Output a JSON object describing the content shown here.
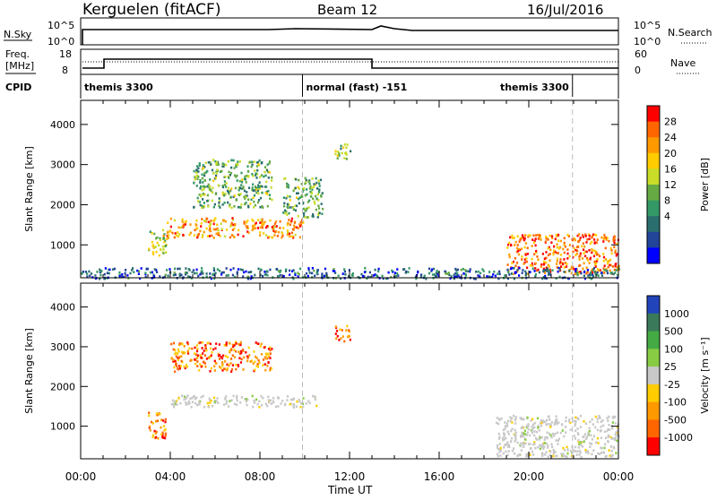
{
  "header": {
    "station_title": "Kerguelen (fitACF)",
    "beam": "Beam 12",
    "date": "16/Jul/2016"
  },
  "param_panels": {
    "nsky_label": "N.Sky",
    "nsky_ticks": [
      "10^5",
      "10^0"
    ],
    "nsearch_label": "N.Search",
    "nsearch_ticks": [
      "10^5",
      "10^0"
    ],
    "freq_label_top": "Freq.",
    "freq_label_unit": "[MHz]",
    "freq_ticks": [
      "18",
      "8"
    ],
    "nave_label": "Nave",
    "nave_ticks": [
      "60",
      "0"
    ],
    "cpid_label": "CPID"
  },
  "cpid_segments": [
    {
      "label": "themis 3300",
      "start_h": 0,
      "end_h": 9.9
    },
    {
      "label": "normal (fast) -151",
      "start_h": 9.9,
      "end_h": 21.95
    },
    {
      "label": "themis 3300",
      "start_h": 21.95,
      "end_h": 24
    }
  ],
  "time_axis": {
    "title": "Time UT",
    "ticks": [
      "00:00",
      "04:00",
      "08:00",
      "12:00",
      "16:00",
      "20:00",
      "00:00"
    ],
    "tick_hours": [
      0,
      4,
      8,
      12,
      16,
      20,
      24
    ]
  },
  "range_axis": {
    "title": "Slant Range [km]",
    "ticks": [
      "1000",
      "2000",
      "3000",
      "4000"
    ],
    "tick_values": [
      1000,
      2000,
      3000,
      4000
    ]
  },
  "chart_data": [
    {
      "type": "heatmap",
      "name": "Power",
      "ylim_km": [
        180,
        4600
      ],
      "xlim_hours": [
        0,
        24
      ],
      "colorbar": {
        "title": "Power [dB]",
        "tick_labels": [
          "28",
          "24",
          "20",
          "16",
          "12",
          "8",
          "4"
        ],
        "colors": [
          "#ff0000",
          "#ff6600",
          "#ff9900",
          "#ffcc00",
          "#c8dc28",
          "#66aa44",
          "#339966",
          "#2a6e6e",
          "#224499",
          "#0000ff"
        ]
      },
      "regions": [
        {
          "t0": 3.0,
          "t1": 3.8,
          "r0": 700,
          "r1": 1400,
          "value_db": 18
        },
        {
          "t0": 3.8,
          "t1": 9.9,
          "r0": 1200,
          "r1": 1700,
          "value_db": 24
        },
        {
          "t0": 5.0,
          "t1": 8.5,
          "r0": 1950,
          "r1": 3150,
          "value_db": 14
        },
        {
          "t0": 9.0,
          "t1": 10.8,
          "r0": 1700,
          "r1": 2700,
          "value_db": 14
        },
        {
          "t0": 11.3,
          "t1": 12.0,
          "r0": 3150,
          "r1": 3550,
          "value_db": 16
        },
        {
          "t0": 19.0,
          "t1": 24.0,
          "r0": 300,
          "r1": 1300,
          "value_db": 26
        },
        {
          "t0": 0.0,
          "t1": 24.0,
          "r0": 180,
          "r1": 450,
          "value_db": 8
        }
      ]
    },
    {
      "type": "heatmap",
      "name": "Velocity",
      "ylim_km": [
        180,
        4600
      ],
      "xlim_hours": [
        0,
        24
      ],
      "colorbar": {
        "title": "Velocity [m s⁻¹]",
        "tick_labels": [
          "1000",
          "500",
          "100",
          "25",
          "-25",
          "-100",
          "-500",
          "-1000"
        ],
        "colors": [
          "#2244bb",
          "#3a7a5a",
          "#44aa44",
          "#88cc44",
          "#c8c8c8",
          "#ffcc00",
          "#ff9900",
          "#ff6600",
          "#ff0000"
        ]
      },
      "regions": [
        {
          "t0": 3.0,
          "t1": 3.8,
          "r0": 700,
          "r1": 1400,
          "value_ms": -100
        },
        {
          "t0": 4.0,
          "t1": 10.5,
          "r0": 1500,
          "r1": 1800,
          "value_ms": 0
        },
        {
          "t0": 4.0,
          "t1": 8.5,
          "r0": 2400,
          "r1": 3150,
          "value_ms": -300
        },
        {
          "t0": 11.3,
          "t1": 12.0,
          "r0": 3150,
          "r1": 3550,
          "value_ms": -300
        },
        {
          "t0": 18.5,
          "t1": 24.0,
          "r0": 250,
          "r1": 1300,
          "value_ms": 0
        }
      ]
    }
  ]
}
